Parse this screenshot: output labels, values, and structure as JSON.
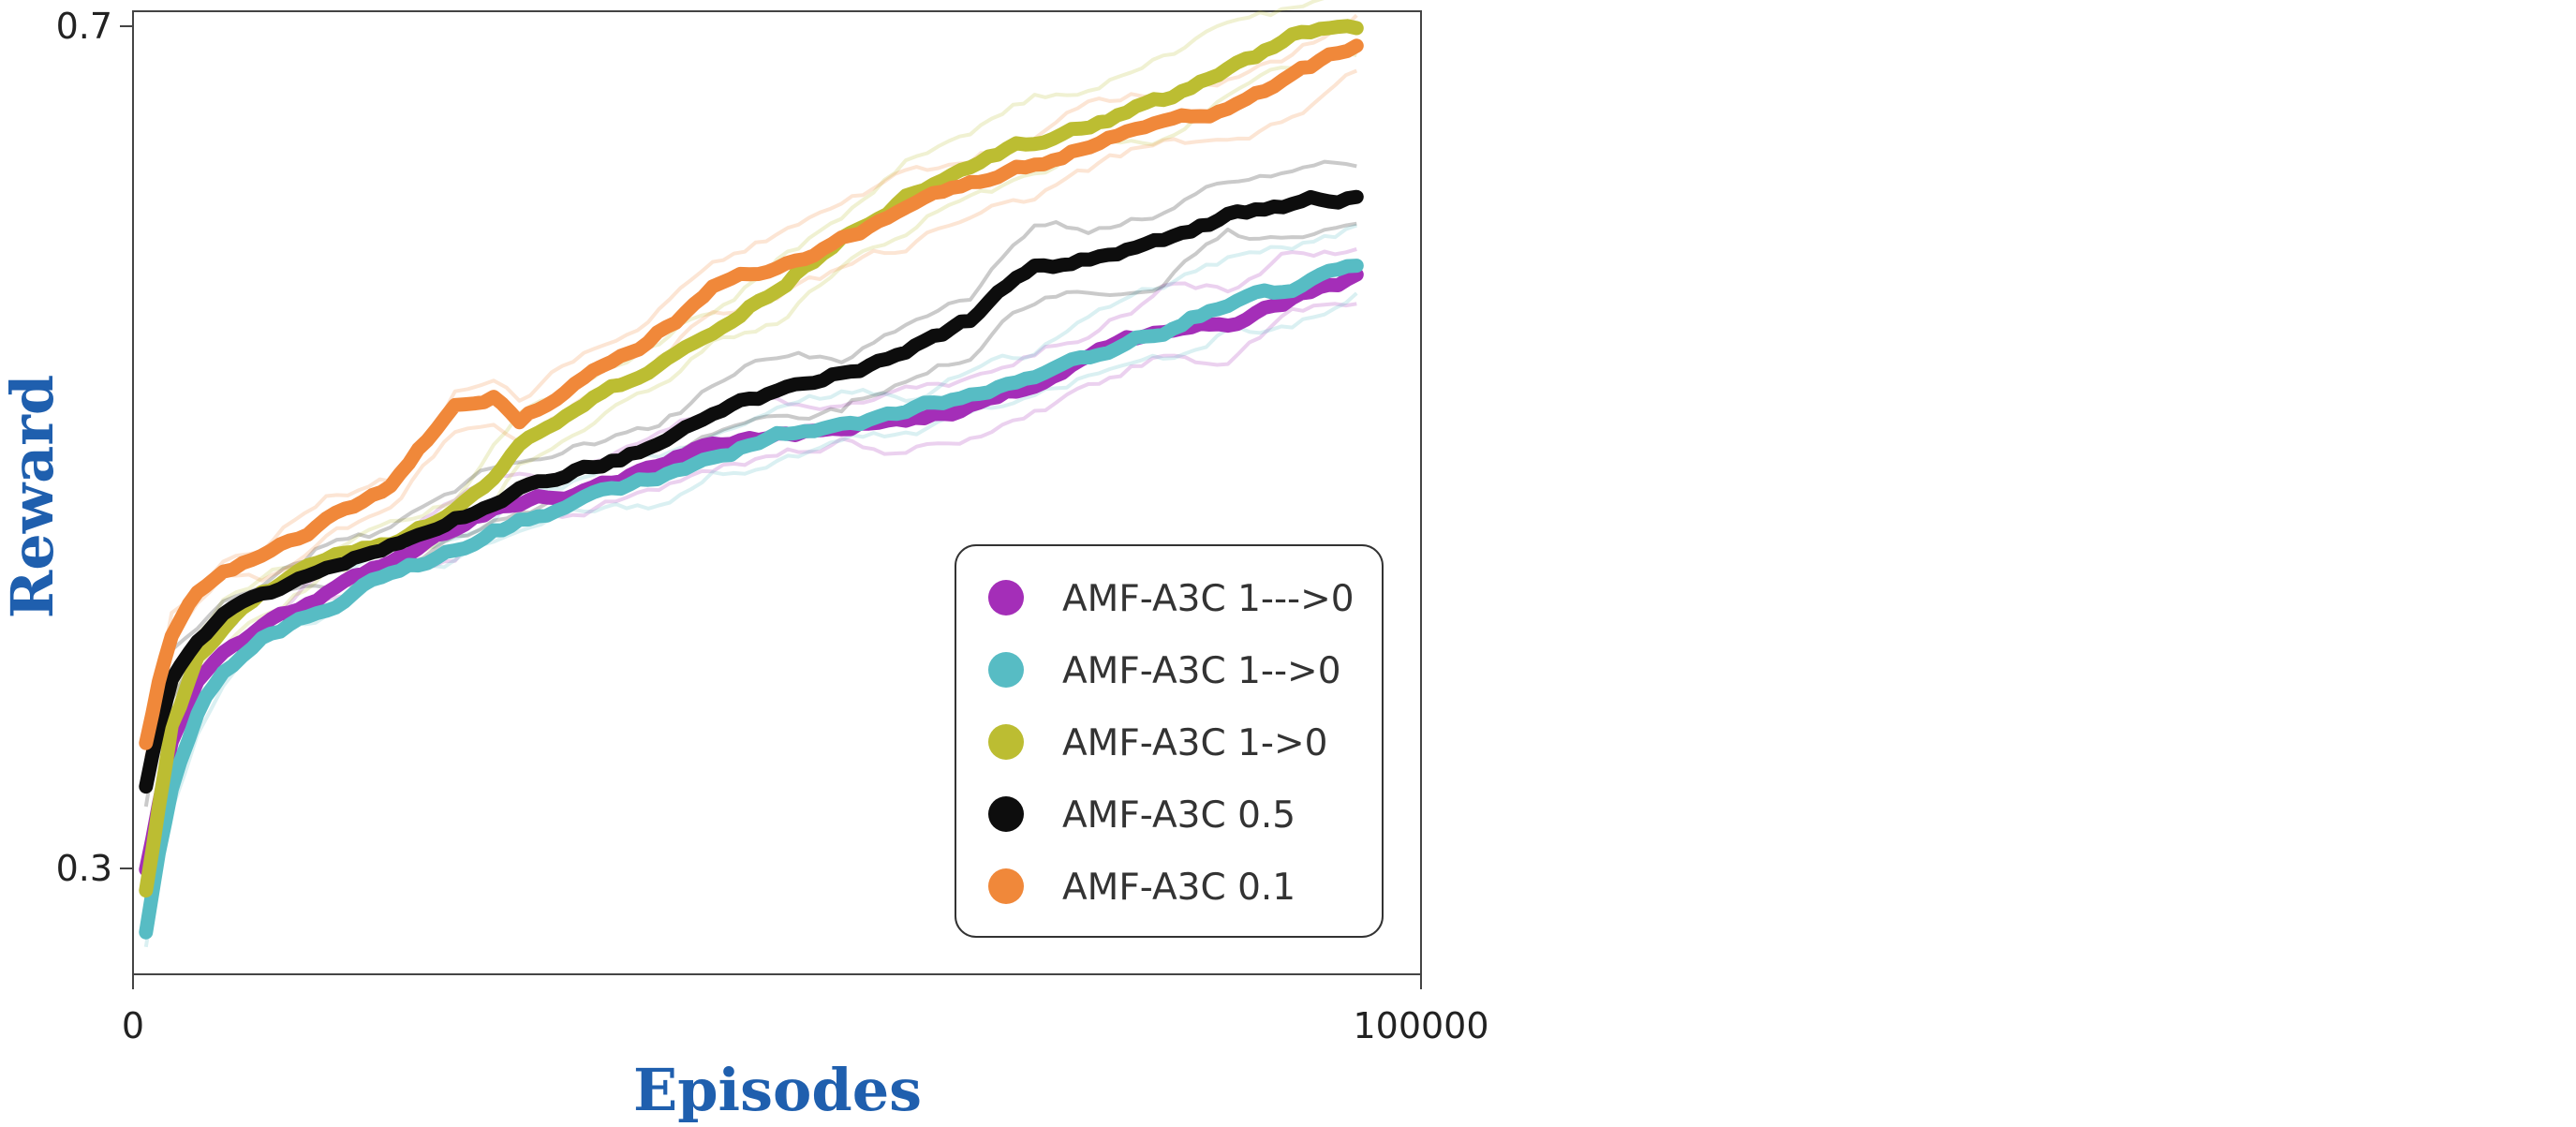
{
  "chart_data": {
    "type": "line",
    "xlabel": "Episodes",
    "ylabel": "Reward",
    "xlim": [
      0,
      100000
    ],
    "ylim": [
      0.25,
      0.71
    ],
    "xticks": [
      {
        "value": 0,
        "label": "0"
      },
      {
        "value": 100000,
        "label": "100000"
      }
    ],
    "yticks": [
      {
        "value": 0.3,
        "label": "0.3"
      },
      {
        "value": 0.7,
        "label": "0.7"
      }
    ],
    "grid": false,
    "legend_position": "bottom-right",
    "x": [
      1000,
      2000,
      3000,
      5000,
      7000,
      10000,
      15000,
      20000,
      25000,
      28000,
      30000,
      35000,
      40000,
      45000,
      50000,
      55000,
      60000,
      65000,
      70000,
      75000,
      80000,
      85000,
      90000,
      95000
    ],
    "series": [
      {
        "name": "AMF-A3C 1--->0",
        "color": "#a42eb8",
        "values": [
          0.3,
          0.33,
          0.36,
          0.39,
          0.405,
          0.415,
          0.43,
          0.445,
          0.46,
          0.47,
          0.475,
          0.48,
          0.49,
          0.5,
          0.505,
          0.51,
          0.515,
          0.52,
          0.53,
          0.545,
          0.555,
          0.56,
          0.57,
          0.58
        ]
      },
      {
        "name": "AMF-A3C 1-->0",
        "color": "#57bcc4",
        "values": [
          0.27,
          0.31,
          0.34,
          0.375,
          0.395,
          0.41,
          0.425,
          0.44,
          0.45,
          0.46,
          0.465,
          0.475,
          0.485,
          0.495,
          0.505,
          0.51,
          0.515,
          0.525,
          0.535,
          0.545,
          0.555,
          0.57,
          0.575,
          0.585
        ]
      },
      {
        "name": "AMF-A3C 1->0",
        "color": "#bcbd32",
        "values": [
          0.29,
          0.33,
          0.37,
          0.4,
          0.415,
          0.43,
          0.445,
          0.455,
          0.47,
          0.485,
          0.5,
          0.52,
          0.535,
          0.555,
          0.575,
          0.6,
          0.62,
          0.635,
          0.645,
          0.655,
          0.665,
          0.68,
          0.695,
          0.7
        ]
      },
      {
        "name": "AMF-A3C 0.5",
        "color": "#0d0d0d",
        "values": [
          0.34,
          0.37,
          0.39,
          0.41,
          0.42,
          0.43,
          0.445,
          0.455,
          0.47,
          0.475,
          0.48,
          0.49,
          0.5,
          0.515,
          0.525,
          0.535,
          0.545,
          0.56,
          0.585,
          0.59,
          0.6,
          0.61,
          0.615,
          0.62
        ]
      },
      {
        "name": "AMF-A3C 0.1",
        "color": "#f0883a",
        "values": [
          0.36,
          0.39,
          0.41,
          0.43,
          0.44,
          0.45,
          0.465,
          0.48,
          0.52,
          0.525,
          0.51,
          0.535,
          0.55,
          0.575,
          0.585,
          0.6,
          0.61,
          0.625,
          0.635,
          0.645,
          0.655,
          0.66,
          0.675,
          0.69
        ]
      }
    ]
  }
}
